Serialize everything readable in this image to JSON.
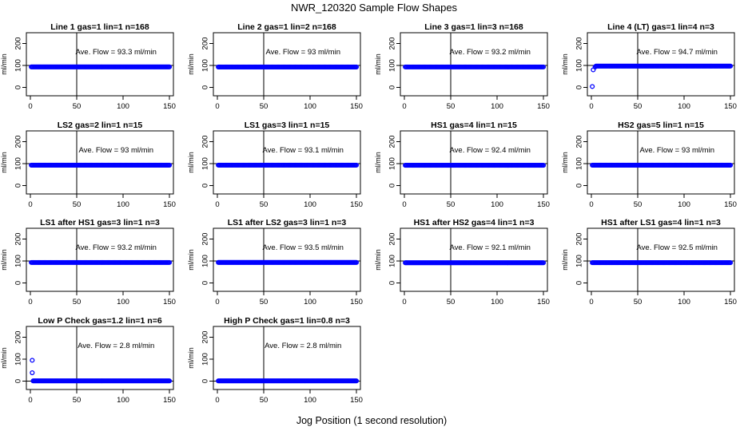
{
  "figure": {
    "title": "NWR_120320  Sample Flow Shapes",
    "xlabel": "Jog Position (1 second resolution)"
  },
  "chart_data": [
    {
      "type": "scatter",
      "title": "Line 1 gas=1 lin=1 n=168",
      "ylabel": "ml/min",
      "annotation": "Ave. Flow = 93.3  ml/min",
      "avg": 93.3,
      "xlim": [
        0,
        150
      ],
      "ylim": [
        0,
        200
      ],
      "xticks": [
        0,
        50,
        100,
        150
      ],
      "yticks": [
        0,
        100,
        200
      ],
      "vline": 50,
      "hline": 100,
      "series": [
        {
          "y_constant": 93.3,
          "x_range": [
            1,
            150
          ],
          "outliers": []
        }
      ],
      "marker_color": "#0000ff"
    },
    {
      "type": "scatter",
      "title": "Line 2 gas=1 lin=2 n=168",
      "ylabel": "ml/min",
      "annotation": "Ave. Flow = 93  ml/min",
      "avg": 93,
      "xlim": [
        0,
        150
      ],
      "ylim": [
        0,
        200
      ],
      "xticks": [
        0,
        50,
        100,
        150
      ],
      "yticks": [
        0,
        100,
        200
      ],
      "vline": 50,
      "hline": 100,
      "series": [
        {
          "y_constant": 93,
          "x_range": [
            1,
            150
          ],
          "outliers": []
        }
      ],
      "marker_color": "#0000ff"
    },
    {
      "type": "scatter",
      "title": "Line 3 gas=1 lin=3 n=168",
      "ylabel": "ml/min",
      "annotation": "Ave. Flow = 93.2  ml/min",
      "avg": 93.2,
      "xlim": [
        0,
        150
      ],
      "ylim": [
        0,
        200
      ],
      "xticks": [
        0,
        50,
        100,
        150
      ],
      "yticks": [
        0,
        100,
        200
      ],
      "vline": 50,
      "hline": 100,
      "series": [
        {
          "y_constant": 93.2,
          "x_range": [
            1,
            150
          ],
          "outliers": []
        }
      ],
      "marker_color": "#0000ff"
    },
    {
      "type": "scatter",
      "title": "Line 4 (LT) gas=1 lin=4 n=3",
      "ylabel": "ml/min",
      "annotation": "Ave. Flow = 94.7  ml/min",
      "avg": 94.7,
      "xlim": [
        0,
        150
      ],
      "ylim": [
        0,
        200
      ],
      "xticks": [
        0,
        50,
        100,
        150
      ],
      "yticks": [
        0,
        100,
        200
      ],
      "vline": 50,
      "hline": 100,
      "series": [
        {
          "y_constant": 97,
          "x_range": [
            5,
            150
          ],
          "outliers": [
            [
              1,
              4
            ],
            [
              2,
              80
            ],
            [
              4,
              93
            ]
          ]
        }
      ],
      "marker_color": "#0000ff"
    },
    {
      "type": "scatter",
      "title": "LS2 gas=2 lin=1 n=15",
      "ylabel": "ml/min",
      "annotation": "Ave. Flow = 93  ml/min",
      "avg": 93,
      "xlim": [
        0,
        150
      ],
      "ylim": [
        0,
        200
      ],
      "xticks": [
        0,
        50,
        100,
        150
      ],
      "yticks": [
        0,
        100,
        200
      ],
      "vline": 50,
      "hline": 100,
      "series": [
        {
          "y_constant": 93,
          "x_range": [
            1,
            150
          ],
          "outliers": []
        }
      ],
      "marker_color": "#0000ff"
    },
    {
      "type": "scatter",
      "title": "LS1 gas=3 lin=1 n=15",
      "ylabel": "ml/min",
      "annotation": "Ave. Flow = 93.1  ml/min",
      "avg": 93.1,
      "xlim": [
        0,
        150
      ],
      "ylim": [
        0,
        200
      ],
      "xticks": [
        0,
        50,
        100,
        150
      ],
      "yticks": [
        0,
        100,
        200
      ],
      "vline": 50,
      "hline": 100,
      "series": [
        {
          "y_constant": 93.1,
          "x_range": [
            1,
            150
          ],
          "outliers": []
        }
      ],
      "marker_color": "#0000ff"
    },
    {
      "type": "scatter",
      "title": "HS1 gas=4 lin=1 n=15",
      "ylabel": "ml/min",
      "annotation": "Ave. Flow = 92.4  ml/min",
      "avg": 92.4,
      "xlim": [
        0,
        150
      ],
      "ylim": [
        0,
        200
      ],
      "xticks": [
        0,
        50,
        100,
        150
      ],
      "yticks": [
        0,
        100,
        200
      ],
      "vline": 50,
      "hline": 100,
      "series": [
        {
          "y_constant": 92.4,
          "x_range": [
            1,
            150
          ],
          "outliers": []
        }
      ],
      "marker_color": "#0000ff"
    },
    {
      "type": "scatter",
      "title": "HS2 gas=5 lin=1 n=15",
      "ylabel": "ml/min",
      "annotation": "Ave. Flow = 93  ml/min",
      "avg": 93,
      "xlim": [
        0,
        150
      ],
      "ylim": [
        0,
        200
      ],
      "xticks": [
        0,
        50,
        100,
        150
      ],
      "yticks": [
        0,
        100,
        200
      ],
      "vline": 50,
      "hline": 100,
      "series": [
        {
          "y_constant": 93,
          "x_range": [
            1,
            150
          ],
          "outliers": []
        }
      ],
      "marker_color": "#0000ff"
    },
    {
      "type": "scatter",
      "title": "LS1 after HS1 gas=3 lin=1 n=3",
      "ylabel": "ml/min",
      "annotation": "Ave. Flow = 93.2  ml/min",
      "avg": 93.2,
      "xlim": [
        0,
        150
      ],
      "ylim": [
        0,
        200
      ],
      "xticks": [
        0,
        50,
        100,
        150
      ],
      "yticks": [
        0,
        100,
        200
      ],
      "vline": 50,
      "hline": 100,
      "series": [
        {
          "y_constant": 93.2,
          "x_range": [
            1,
            150
          ],
          "outliers": []
        }
      ],
      "marker_color": "#0000ff"
    },
    {
      "type": "scatter",
      "title": "LS1 after LS2 gas=3 lin=1 n=3",
      "ylabel": "ml/min",
      "annotation": "Ave. Flow = 93.5  ml/min",
      "avg": 93.5,
      "xlim": [
        0,
        150
      ],
      "ylim": [
        0,
        200
      ],
      "xticks": [
        0,
        50,
        100,
        150
      ],
      "yticks": [
        0,
        100,
        200
      ],
      "vline": 50,
      "hline": 100,
      "series": [
        {
          "y_constant": 93.5,
          "x_range": [
            1,
            150
          ],
          "outliers": []
        }
      ],
      "marker_color": "#0000ff"
    },
    {
      "type": "scatter",
      "title": "HS1 after HS2 gas=4 lin=1 n=3",
      "ylabel": "ml/min",
      "annotation": "Ave. Flow = 92.1  ml/min",
      "avg": 92.1,
      "xlim": [
        0,
        150
      ],
      "ylim": [
        0,
        200
      ],
      "xticks": [
        0,
        50,
        100,
        150
      ],
      "yticks": [
        0,
        100,
        200
      ],
      "vline": 50,
      "hline": 100,
      "series": [
        {
          "y_constant": 92.1,
          "x_range": [
            1,
            150
          ],
          "outliers": []
        }
      ],
      "marker_color": "#0000ff"
    },
    {
      "type": "scatter",
      "title": "HS1 after LS1 gas=4 lin=1 n=3",
      "ylabel": "ml/min",
      "annotation": "Ave. Flow = 92.5  ml/min",
      "avg": 92.5,
      "xlim": [
        0,
        150
      ],
      "ylim": [
        0,
        200
      ],
      "xticks": [
        0,
        50,
        100,
        150
      ],
      "yticks": [
        0,
        100,
        200
      ],
      "vline": 50,
      "hline": 100,
      "series": [
        {
          "y_constant": 92.5,
          "x_range": [
            1,
            150
          ],
          "outliers": []
        }
      ],
      "marker_color": "#0000ff"
    },
    {
      "type": "scatter",
      "title": "Low P Check gas=1.2 lin=1 n=6",
      "ylabel": "ml/min",
      "annotation": "Ave. Flow = 2.8  ml/min",
      "avg": 2.8,
      "xlim": [
        0,
        150
      ],
      "ylim": [
        0,
        200
      ],
      "xticks": [
        0,
        50,
        100,
        150
      ],
      "yticks": [
        0,
        100,
        200
      ],
      "vline": 50,
      "hline": 0,
      "series": [
        {
          "y_constant": 1,
          "x_range": [
            3,
            150
          ],
          "outliers": [
            [
              2,
              95
            ],
            [
              2,
              38
            ]
          ]
        }
      ],
      "marker_color": "#0000ff"
    },
    {
      "type": "scatter",
      "title": "High P Check gas=1 lin=0.8 n=3",
      "ylabel": "ml/min",
      "annotation": "Ave. Flow = 2.8  ml/min",
      "avg": 2.8,
      "xlim": [
        0,
        150
      ],
      "ylim": [
        0,
        200
      ],
      "xticks": [
        0,
        50,
        100,
        150
      ],
      "yticks": [
        0,
        100,
        200
      ],
      "vline": 50,
      "hline": 0,
      "series": [
        {
          "y_constant": 1,
          "x_range": [
            1,
            150
          ],
          "outliers": []
        }
      ],
      "marker_color": "#0000ff"
    }
  ]
}
